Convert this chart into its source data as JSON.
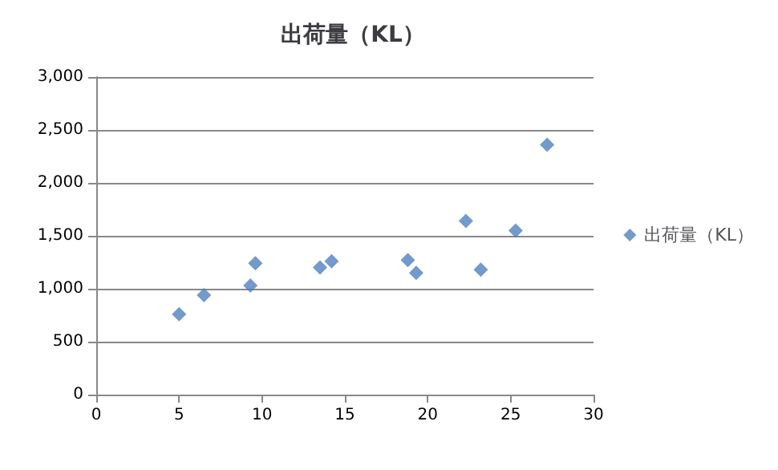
{
  "chart_data": {
    "type": "scatter",
    "title": "出荷量（KL）",
    "series": [
      {
        "name": "出荷量（KL）",
        "color": "#4f81bd",
        "x": [
          5.0,
          6.5,
          9.3,
          9.6,
          13.5,
          14.2,
          18.8,
          19.3,
          22.3,
          23.2,
          25.3,
          27.2
        ],
        "values": [
          760,
          940,
          1030,
          1240,
          1200,
          1260,
          1270,
          1150,
          1640,
          1180,
          1550,
          2360
        ]
      }
    ],
    "xlim": [
      0,
      30
    ],
    "xticks": [
      0,
      5,
      10,
      15,
      20,
      25,
      30
    ],
    "ylim": [
      0,
      3000
    ],
    "yticks": [
      {
        "value": 0,
        "label": "0"
      },
      {
        "value": 500,
        "label": "500"
      },
      {
        "value": 1000,
        "label": "1,000"
      },
      {
        "value": 1500,
        "label": "1,500"
      },
      {
        "value": 2000,
        "label": "2,000"
      },
      {
        "value": 2500,
        "label": "2,500"
      },
      {
        "value": 3000,
        "label": "3,000"
      }
    ],
    "grid": "y",
    "legend": "right",
    "marker": "diamond"
  }
}
